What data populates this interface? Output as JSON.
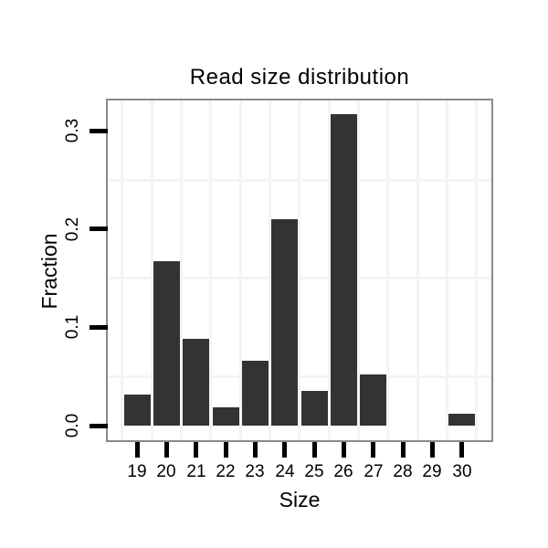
{
  "chart_data": {
    "type": "bar",
    "title": "Read size distribution",
    "xlabel": "Size",
    "ylabel": "Fraction",
    "categories": [
      "19",
      "20",
      "21",
      "22",
      "23",
      "24",
      "25",
      "26",
      "27",
      "28",
      "29",
      "30"
    ],
    "values": [
      0.032,
      0.167,
      0.088,
      0.019,
      0.066,
      0.21,
      0.035,
      0.317,
      0.052,
      0,
      0,
      0.012
    ],
    "yticks": [
      0,
      0.1,
      0.2,
      0.3
    ],
    "ytick_labels": [
      "0.0",
      "0.1",
      "0.2",
      "0.3"
    ],
    "ylim": [
      -0.015,
      0.333
    ],
    "minor_gridlines_y": [
      0.05,
      0.15,
      0.25
    ],
    "grid": "faint minor gridlines only: horizontal between y ticks, vertical at category boundaries",
    "legend": "none",
    "colors": {
      "bar": "#333333",
      "panel_border": "#8a8a8a",
      "gridline": "#f4f4f4",
      "tick": "#000000",
      "text": "#000000",
      "background": "#ffffff"
    }
  }
}
